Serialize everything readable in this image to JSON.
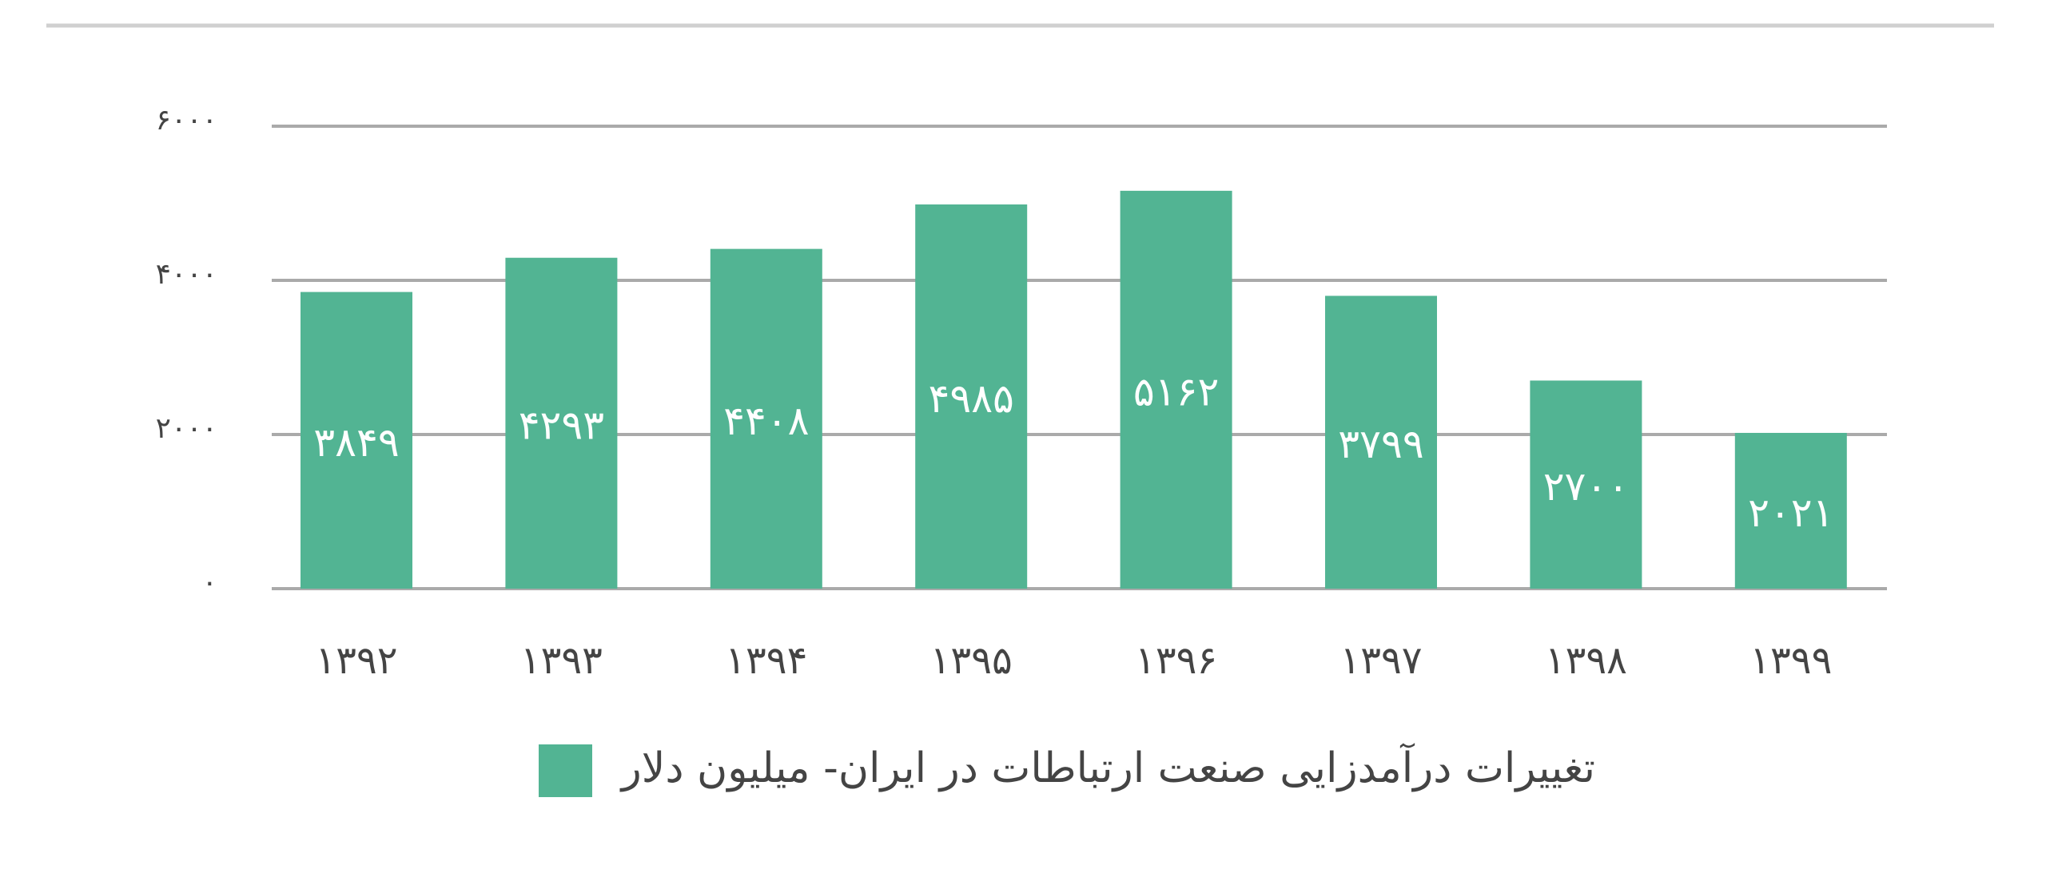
{
  "chart_data": {
    "type": "bar",
    "categories": [
      "۱۳۹۲",
      "۱۳۹۳",
      "۱۳۹۴",
      "۱۳۹۵",
      "۱۳۹۶",
      "۱۳۹۷",
      "۱۳۹۸",
      "۱۳۹۹"
    ],
    "series": [
      {
        "name": "تغییرات درآمدزایی صنعت ارتباطات در ایران- میلیون دلار",
        "color": "#52b493",
        "values": [
          3849,
          4293,
          4408,
          4985,
          5162,
          3799,
          2700,
          2021
        ],
        "value_labels": [
          "۳۸۴۹",
          "۴۲۹۳",
          "۴۴۰۸",
          "۴۹۸۵",
          "۵۱۶۲",
          "۳۷۹۹",
          "۲۷۰۰",
          "۲۰۲۱"
        ]
      }
    ],
    "ylim": [
      0,
      6000
    ],
    "yticks": [
      {
        "value": 0,
        "label": "۰"
      },
      {
        "value": 2000,
        "label": "۲۰۰۰"
      },
      {
        "value": 4000,
        "label": "۴۰۰۰"
      },
      {
        "value": 6000,
        "label": "۶۰۰۰"
      }
    ],
    "grid": true,
    "legend": "bottom"
  }
}
